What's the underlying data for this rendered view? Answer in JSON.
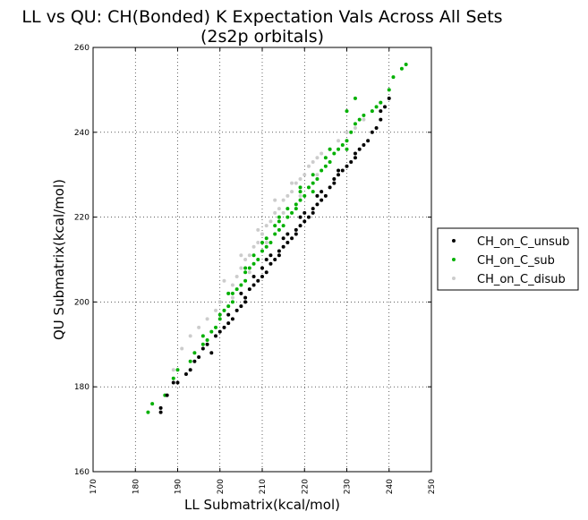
{
  "chart_data": {
    "type": "scatter",
    "title": "LL vs QU: CH(Bonded) K Expectation Vals Across All Sets",
    "subtitle": "(2s2p orbitals)",
    "xlabel": "LL Submatrix(kcal/mol)",
    "ylabel": "QU Submatrix(kcal/mol)",
    "xlim": [
      170,
      250
    ],
    "ylim": [
      160,
      260
    ],
    "xticks": [
      170,
      180,
      190,
      200,
      210,
      220,
      230,
      240,
      250
    ],
    "yticks": [
      160,
      180,
      200,
      220,
      240,
      260
    ],
    "grid": true,
    "legend_position": "outside-right",
    "series": [
      {
        "name": "CH_on_C_unsub",
        "color": "#000000",
        "points": [
          [
            186,
            174
          ],
          [
            186,
            175
          ],
          [
            187.5,
            178
          ],
          [
            189,
            181
          ],
          [
            190,
            181
          ],
          [
            192,
            183
          ],
          [
            193,
            184
          ],
          [
            194,
            186
          ],
          [
            195,
            187
          ],
          [
            196,
            189
          ],
          [
            198,
            188
          ],
          [
            197,
            190
          ],
          [
            199,
            192
          ],
          [
            200,
            193
          ],
          [
            201,
            194
          ],
          [
            202,
            195
          ],
          [
            202,
            197
          ],
          [
            203,
            196
          ],
          [
            204,
            198
          ],
          [
            205,
            199
          ],
          [
            206,
            200
          ],
          [
            206,
            201
          ],
          [
            207,
            203
          ],
          [
            208,
            204
          ],
          [
            209,
            205
          ],
          [
            210,
            206
          ],
          [
            210,
            208
          ],
          [
            211,
            207
          ],
          [
            212,
            209
          ],
          [
            213,
            210
          ],
          [
            214,
            212
          ],
          [
            214,
            211
          ],
          [
            215,
            213
          ],
          [
            216,
            214
          ],
          [
            217,
            215
          ],
          [
            218,
            216
          ],
          [
            218,
            217
          ],
          [
            219,
            218
          ],
          [
            220,
            219
          ],
          [
            221,
            220
          ],
          [
            222,
            222
          ],
          [
            222,
            221
          ],
          [
            223,
            223
          ],
          [
            224,
            224
          ],
          [
            225,
            225
          ],
          [
            226,
            227
          ],
          [
            227,
            228
          ],
          [
            227,
            229
          ],
          [
            228,
            230
          ],
          [
            229,
            231
          ],
          [
            230,
            232
          ],
          [
            231,
            233
          ],
          [
            232,
            235
          ],
          [
            232,
            234
          ],
          [
            233,
            236
          ],
          [
            234,
            237
          ],
          [
            235,
            238
          ],
          [
            236,
            240
          ],
          [
            237,
            241
          ],
          [
            238,
            243
          ],
          [
            238,
            245
          ],
          [
            239,
            246
          ],
          [
            240,
            248
          ],
          [
            205,
            202
          ],
          [
            208,
            206
          ],
          [
            212,
            211
          ],
          [
            216,
            216
          ],
          [
            220,
            221
          ],
          [
            224,
            226
          ],
          [
            228,
            231
          ],
          [
            211,
            210
          ],
          [
            215,
            215
          ],
          [
            219,
            220
          ],
          [
            223,
            225
          ]
        ]
      },
      {
        "name": "CH_on_C_sub",
        "color": "#00b000",
        "points": [
          [
            183,
            174
          ],
          [
            184,
            176
          ],
          [
            187,
            178
          ],
          [
            189,
            182
          ],
          [
            190,
            184
          ],
          [
            193,
            186
          ],
          [
            194,
            188
          ],
          [
            196,
            190
          ],
          [
            196,
            192
          ],
          [
            197,
            191
          ],
          [
            198,
            193
          ],
          [
            199,
            194
          ],
          [
            200,
            196
          ],
          [
            200,
            197
          ],
          [
            201,
            198
          ],
          [
            202,
            199
          ],
          [
            203,
            200
          ],
          [
            203,
            202
          ],
          [
            204,
            203
          ],
          [
            205,
            204
          ],
          [
            206,
            205
          ],
          [
            206,
            207
          ],
          [
            207,
            208
          ],
          [
            208,
            209
          ],
          [
            208,
            211
          ],
          [
            209,
            210
          ],
          [
            210,
            212
          ],
          [
            211,
            213
          ],
          [
            211,
            215
          ],
          [
            212,
            214
          ],
          [
            213,
            216
          ],
          [
            214,
            217
          ],
          [
            214,
            219
          ],
          [
            215,
            218
          ],
          [
            216,
            220
          ],
          [
            216,
            222
          ],
          [
            217,
            221
          ],
          [
            218,
            223
          ],
          [
            219,
            224
          ],
          [
            219,
            226
          ],
          [
            220,
            225
          ],
          [
            221,
            227
          ],
          [
            222,
            228
          ],
          [
            222,
            230
          ],
          [
            223,
            229
          ],
          [
            224,
            231
          ],
          [
            225,
            232
          ],
          [
            225,
            234
          ],
          [
            226,
            233
          ],
          [
            227,
            235
          ],
          [
            228,
            236
          ],
          [
            229,
            237
          ],
          [
            230,
            238
          ],
          [
            231,
            240
          ],
          [
            232,
            242
          ],
          [
            233,
            243
          ],
          [
            234,
            244
          ],
          [
            236,
            245
          ],
          [
            237,
            246
          ],
          [
            238,
            247
          ],
          [
            240,
            250
          ],
          [
            241,
            253
          ],
          [
            243,
            255
          ],
          [
            244,
            256
          ],
          [
            230,
            236
          ],
          [
            226,
            236
          ],
          [
            222,
            226
          ],
          [
            218,
            222
          ],
          [
            214,
            220
          ],
          [
            210,
            214
          ],
          [
            206,
            208
          ],
          [
            202,
            202
          ],
          [
            230,
            245
          ],
          [
            232,
            248
          ],
          [
            219,
            227
          ],
          [
            213,
            218
          ]
        ]
      },
      {
        "name": "CH_on_C_disub",
        "color": "#cccccc",
        "points": [
          [
            189,
            184
          ],
          [
            191,
            189
          ],
          [
            193,
            192
          ],
          [
            195,
            194
          ],
          [
            197,
            196
          ],
          [
            199,
            198
          ],
          [
            200,
            200
          ],
          [
            202,
            202
          ],
          [
            203,
            204
          ],
          [
            204,
            206
          ],
          [
            205,
            208
          ],
          [
            206,
            210
          ],
          [
            207,
            211
          ],
          [
            208,
            213
          ],
          [
            209,
            214
          ],
          [
            210,
            216
          ],
          [
            211,
            218
          ],
          [
            212,
            219
          ],
          [
            213,
            221
          ],
          [
            214,
            222
          ],
          [
            215,
            224
          ],
          [
            216,
            225
          ],
          [
            217,
            226
          ],
          [
            218,
            228
          ],
          [
            219,
            229
          ],
          [
            220,
            230
          ],
          [
            221,
            232
          ],
          [
            222,
            233
          ],
          [
            223,
            234
          ],
          [
            224,
            235
          ],
          [
            226,
            236
          ],
          [
            228,
            238
          ],
          [
            230,
            240
          ],
          [
            232,
            241
          ],
          [
            234,
            243
          ],
          [
            236,
            245
          ],
          [
            238,
            247
          ],
          [
            203,
            201
          ],
          [
            207,
            207
          ],
          [
            211,
            214
          ],
          [
            215,
            221
          ],
          [
            219,
            225
          ],
          [
            223,
            230
          ],
          [
            217,
            228
          ],
          [
            213,
            224
          ],
          [
            209,
            217
          ],
          [
            205,
            211
          ],
          [
            201,
            205
          ]
        ]
      }
    ]
  }
}
